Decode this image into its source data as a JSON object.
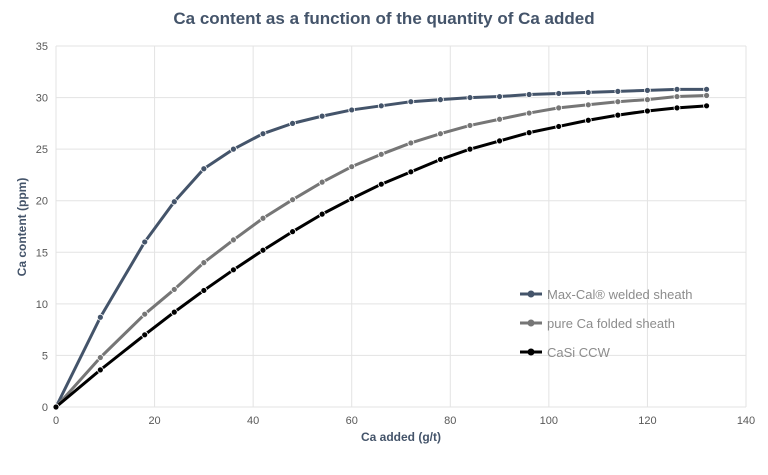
{
  "chart_data": {
    "type": "line",
    "title": "Ca content as a function of the quantity of Ca added",
    "xlabel": "Ca added (g/t)",
    "ylabel": "Ca content (ppm)",
    "xlim": [
      0,
      140
    ],
    "ylim": [
      0,
      35
    ],
    "xticks": [
      "0",
      "20",
      "40",
      "60",
      "80",
      "100",
      "120",
      "140"
    ],
    "yticks": [
      "0",
      "5",
      "10",
      "15",
      "20",
      "25",
      "30",
      "35"
    ],
    "grid": true,
    "legend_position": "bottom-right",
    "series": [
      {
        "name": "Max-Cal® welded sheath",
        "color": "#44546a",
        "x": [
          0,
          9,
          18,
          24,
          30,
          36,
          42,
          48,
          54,
          60,
          66,
          72,
          78,
          84,
          90,
          96,
          102,
          108,
          114,
          120,
          126,
          132
        ],
        "y": [
          0,
          8.7,
          16.0,
          19.9,
          23.1,
          25.0,
          26.5,
          27.5,
          28.2,
          28.8,
          29.2,
          29.6,
          29.8,
          30.0,
          30.1,
          30.3,
          30.4,
          30.5,
          30.6,
          30.7,
          30.8,
          30.8
        ]
      },
      {
        "name": "pure Ca folded sheath",
        "color": "#767676",
        "x": [
          0,
          9,
          18,
          24,
          30,
          36,
          42,
          48,
          54,
          60,
          66,
          72,
          78,
          84,
          90,
          96,
          102,
          108,
          114,
          120,
          126,
          132
        ],
        "y": [
          0,
          4.8,
          9.0,
          11.4,
          14.0,
          16.2,
          18.3,
          20.1,
          21.8,
          23.3,
          24.5,
          25.6,
          26.5,
          27.3,
          27.9,
          28.5,
          29.0,
          29.3,
          29.6,
          29.8,
          30.1,
          30.2
        ]
      },
      {
        "name": "CaSi CCW",
        "color": "#000000",
        "x": [
          0,
          9,
          18,
          24,
          30,
          36,
          42,
          48,
          54,
          60,
          66,
          72,
          78,
          84,
          90,
          96,
          102,
          108,
          114,
          120,
          126,
          132
        ],
        "y": [
          0,
          3.6,
          7.0,
          9.2,
          11.3,
          13.3,
          15.2,
          17.0,
          18.7,
          20.2,
          21.6,
          22.8,
          24.0,
          25.0,
          25.8,
          26.6,
          27.2,
          27.8,
          28.3,
          28.7,
          29.0,
          29.2
        ]
      }
    ]
  }
}
